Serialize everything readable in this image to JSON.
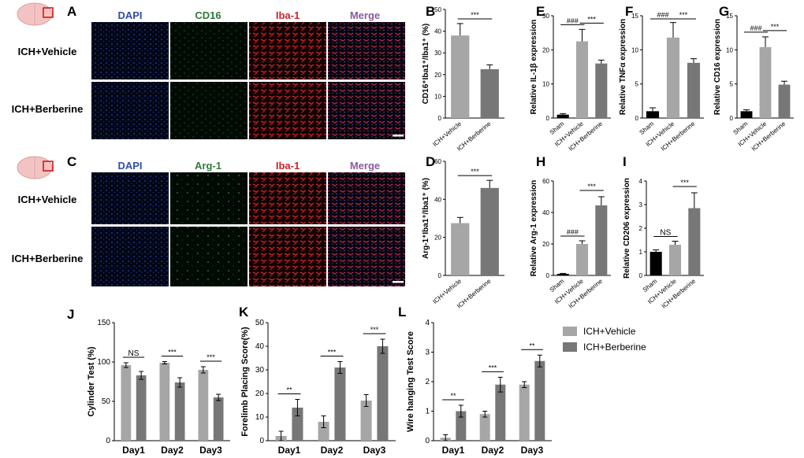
{
  "colors": {
    "sham": "#000000",
    "vehicle": "#a6a6a6",
    "berberine": "#777777",
    "dapi": "#2f4ea8",
    "cd16": "#2f7a3a",
    "iba1": "#c8262a",
    "merge": "#8a5aa0"
  },
  "row_labels": {
    "vehicle": "ICH+Vehicle",
    "berberine": "ICH+Berberine"
  },
  "panel_A": {
    "letter": "A",
    "channels": [
      "DAPI",
      "CD16",
      "Iba-1",
      "Merge"
    ]
  },
  "panel_C": {
    "letter": "C",
    "channels": [
      "DAPI",
      "Arg-1",
      "Iba-1",
      "Merge"
    ]
  },
  "legend": {
    "vehicle": "ICH+Vehicle",
    "berberine": "ICH+Berberine"
  },
  "chart_data": [
    {
      "id": "B",
      "type": "bar",
      "ylabel": "CD16⁺Iba1⁺/Iba1⁺ (%)",
      "ylim": [
        0,
        50
      ],
      "yticks": [
        0,
        10,
        20,
        30,
        40,
        50
      ],
      "categories": [
        "ICH+Vehicle",
        "ICH+Berberine"
      ],
      "values": [
        38,
        22.5
      ],
      "errors": [
        5.5,
        2
      ],
      "annotations": [
        {
          "text": "***",
          "from": 0,
          "to": 1
        }
      ]
    },
    {
      "id": "E",
      "type": "bar",
      "ylabel": "Relative IL-1β expression",
      "ylim": [
        0,
        30
      ],
      "yticks": [
        0,
        10,
        20,
        30
      ],
      "categories": [
        "Sham",
        "ICH+Vehicle",
        "ICH+Berberine"
      ],
      "values": [
        1,
        22.5,
        16
      ],
      "errors": [
        0.3,
        3.5,
        1
      ],
      "annotations": [
        {
          "text": "###",
          "from": 0,
          "to": 1
        },
        {
          "text": "***",
          "from": 1,
          "to": 2
        }
      ]
    },
    {
      "id": "F",
      "type": "bar",
      "ylabel": "Relative TNFα expression",
      "ylim": [
        0,
        15
      ],
      "yticks": [
        0,
        5,
        10,
        15
      ],
      "categories": [
        "Sham",
        "ICH+Vehicle",
        "ICH+Berberine"
      ],
      "values": [
        1,
        11.8,
        8.1
      ],
      "errors": [
        0.5,
        2.2,
        0.6
      ],
      "annotations": [
        {
          "text": "###",
          "from": 0,
          "to": 1
        },
        {
          "text": "***",
          "from": 1,
          "to": 2
        }
      ]
    },
    {
      "id": "G",
      "type": "bar",
      "ylabel": "Relative CD16 expression",
      "ylim": [
        0,
        15
      ],
      "yticks": [
        0,
        5,
        10,
        15
      ],
      "categories": [
        "Sham",
        "ICH+Vehicle",
        "ICH+Berberine"
      ],
      "values": [
        1,
        10.4,
        4.9
      ],
      "errors": [
        0.2,
        1.5,
        0.5
      ],
      "annotations": [
        {
          "text": "###",
          "from": 0,
          "to": 1
        },
        {
          "text": "***",
          "from": 1,
          "to": 2
        }
      ]
    },
    {
      "id": "D",
      "type": "bar",
      "ylabel": "Arg-1⁺Iba1⁺/Iba1⁺ (%)",
      "ylim": [
        0,
        60
      ],
      "yticks": [
        0,
        20,
        40,
        60
      ],
      "categories": [
        "ICH+Vehicle",
        "ICH+Berberine"
      ],
      "values": [
        27.5,
        46
      ],
      "errors": [
        3,
        4
      ],
      "annotations": [
        {
          "text": "***",
          "from": 0,
          "to": 1
        }
      ]
    },
    {
      "id": "H",
      "type": "bar",
      "ylabel": "Relative Arg-1 expression",
      "ylim": [
        0,
        60
      ],
      "yticks": [
        0,
        20,
        40,
        60
      ],
      "categories": [
        "Sham",
        "ICH+Vehicle",
        "ICH+Berberine"
      ],
      "values": [
        1,
        20,
        44.5
      ],
      "errors": [
        0.3,
        2,
        5.5
      ],
      "annotations": [
        {
          "text": "###",
          "from": 0,
          "to": 1
        },
        {
          "text": "***",
          "from": 1,
          "to": 2
        }
      ]
    },
    {
      "id": "I",
      "type": "bar",
      "ylabel": "Relative CD206 expression",
      "ylim": [
        0,
        4
      ],
      "yticks": [
        0,
        1,
        2,
        3,
        4
      ],
      "categories": [
        "Sham",
        "ICH+Vehicle",
        "ICH+Berberine"
      ],
      "values": [
        1,
        1.3,
        2.85
      ],
      "errors": [
        0.08,
        0.15,
        0.65
      ],
      "annotations": [
        {
          "text": "NS",
          "from": 0,
          "to": 1
        },
        {
          "text": "***",
          "from": 1,
          "to": 2
        }
      ]
    },
    {
      "id": "J",
      "type": "bar",
      "ylabel": "Cylinder Test (%)",
      "ylim": [
        0,
        150
      ],
      "yticks": [
        0,
        50,
        100,
        150
      ],
      "categories": [
        "Day1",
        "Day2",
        "Day3"
      ],
      "series": [
        {
          "name": "ICH+Vehicle",
          "values": [
            96,
            99,
            90
          ],
          "errors": [
            3,
            1.5,
            4
          ]
        },
        {
          "name": "ICH+Berberine",
          "values": [
            83,
            74,
            55
          ],
          "errors": [
            5,
            6,
            4
          ]
        }
      ],
      "annotations": [
        "NS",
        "***",
        "***"
      ]
    },
    {
      "id": "K",
      "type": "bar",
      "ylabel": "Forelimb Placing Score(%)",
      "ylim": [
        0,
        50
      ],
      "yticks": [
        0,
        10,
        20,
        30,
        40,
        50
      ],
      "categories": [
        "Day1",
        "Day2",
        "Day3"
      ],
      "series": [
        {
          "name": "ICH+Vehicle",
          "values": [
            2,
            8,
            17
          ],
          "errors": [
            2,
            2.5,
            2.5
          ]
        },
        {
          "name": "ICH+Berberine",
          "values": [
            14,
            31,
            40
          ],
          "errors": [
            3.5,
            2.5,
            3
          ]
        }
      ],
      "annotations": [
        "**",
        "***",
        "***"
      ]
    },
    {
      "id": "L",
      "type": "bar",
      "ylabel": "Wire hanging Test Score",
      "ylim": [
        0,
        4
      ],
      "yticks": [
        0,
        1,
        2,
        3,
        4
      ],
      "categories": [
        "Day1",
        "Day2",
        "Day3"
      ],
      "series": [
        {
          "name": "ICH+Vehicle",
          "values": [
            0.1,
            0.9,
            1.9
          ],
          "errors": [
            0.1,
            0.1,
            0.1
          ]
        },
        {
          "name": "ICH+Berberine",
          "values": [
            1.0,
            1.9,
            2.7
          ],
          "errors": [
            0.2,
            0.25,
            0.2
          ]
        }
      ],
      "annotations": [
        "**",
        "***",
        "**"
      ]
    }
  ]
}
